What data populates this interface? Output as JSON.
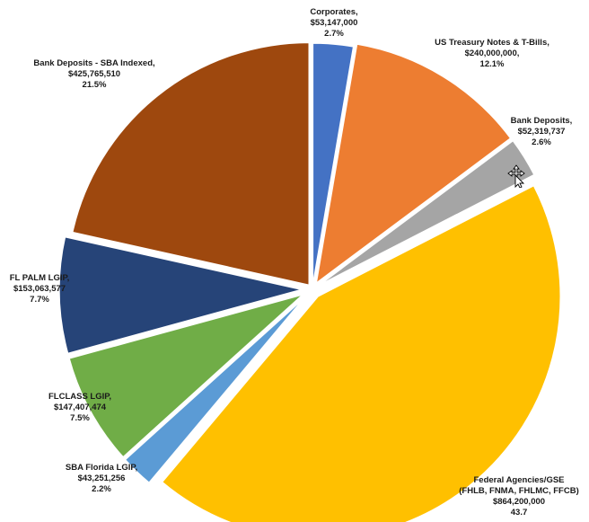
{
  "chart_data": {
    "type": "pie",
    "title": "",
    "slices": [
      {
        "label": "Corporates,",
        "value": 53147000,
        "value_text": "$53,147,000",
        "percent": 2.7,
        "percent_text": "2.7%",
        "color": "#4472C4"
      },
      {
        "label": "US Treasury Notes & T-Bills,",
        "value": 240000000,
        "value_text": "$240,000,000,",
        "percent": 12.1,
        "percent_text": "12.1%",
        "color": "#ED7D31"
      },
      {
        "label": "Bank Deposits,",
        "value": 52319737,
        "value_text": "$52,319,737",
        "percent": 2.6,
        "percent_text": "2.6%",
        "color": "#A5A5A5"
      },
      {
        "label": "Federal Agencies/GSE",
        "label2": "(FHLB, FNMA, FHLMC, FFCB)",
        "value": 864200000,
        "value_text": "$864,200,000",
        "percent": 43.7,
        "percent_text": "43.7",
        "color": "#FFC000"
      },
      {
        "label": "SBA Florida LGIP,",
        "value": 43251256,
        "value_text": "$43,251,256",
        "percent": 2.2,
        "percent_text": "2.2%",
        "color": "#5B9BD5"
      },
      {
        "label": "FLCLASS LGIP,",
        "value": 147407474,
        "value_text": "$147,407,474",
        "percent": 7.5,
        "percent_text": "7.5%",
        "color": "#70AD47"
      },
      {
        "label": "FL PALM LGIP,",
        "value": 153063577,
        "value_text": "$153,063,577",
        "percent": 7.7,
        "percent_text": "7.7%",
        "color": "#264478"
      },
      {
        "label": "Bank Deposits - SBA Indexed,",
        "value": 425765510,
        "value_text": "$425,765,510",
        "percent": 21.5,
        "percent_text": "21.5%",
        "color": "#9E480E"
      }
    ]
  },
  "cursor": {
    "icon": "move-cursor-icon"
  }
}
